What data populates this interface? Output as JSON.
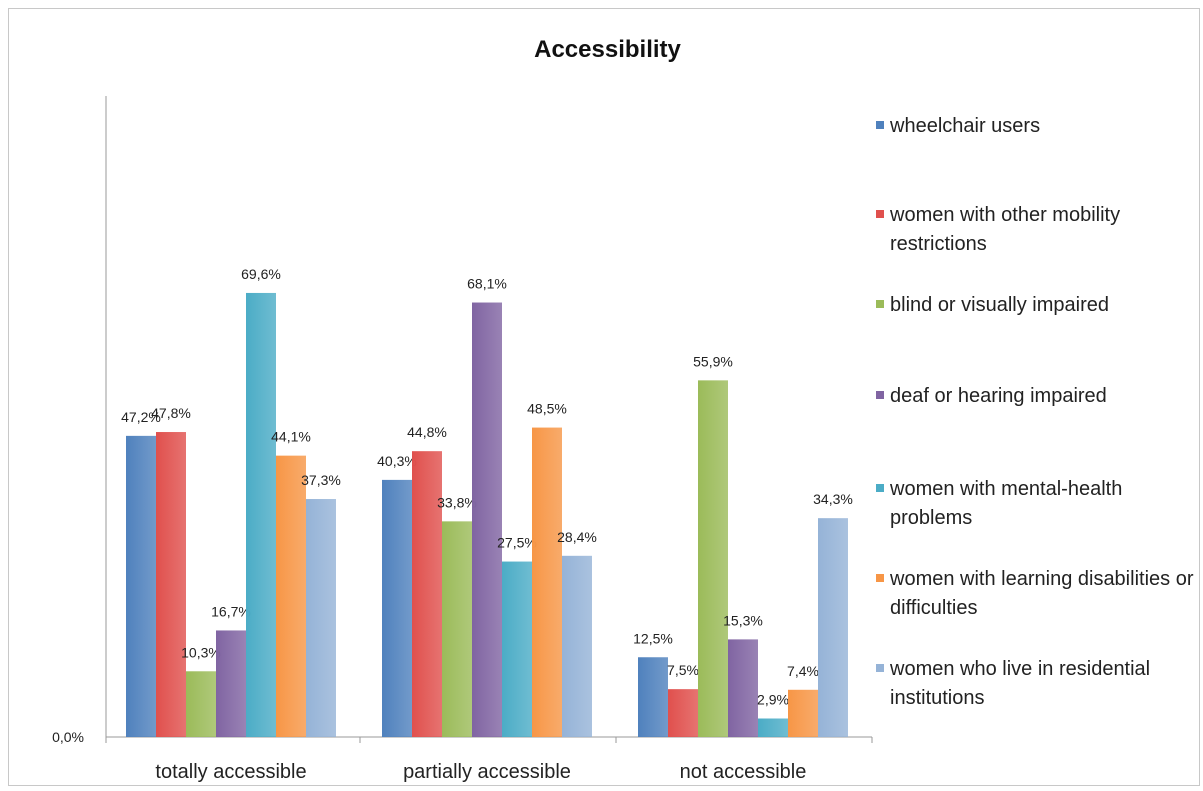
{
  "chart_data": {
    "type": "bar",
    "title": "Accessibility",
    "xlabel": "",
    "ylabel": "",
    "ylim": [
      0,
      70
    ],
    "y_tick_labels": [
      "0,0%"
    ],
    "grid": false,
    "legend_placement": "right",
    "categories": [
      "totally accessible",
      "partially accessible",
      "not accessible"
    ],
    "series": [
      {
        "name": "wheelchair users",
        "color": "#4f81bd",
        "values": [
          47.2,
          40.3,
          12.5
        ],
        "labels": [
          "47,2%",
          "40,3%",
          "12,5%"
        ]
      },
      {
        "name": "women with other mobility restrictions",
        "color": "#e0504d",
        "values": [
          47.8,
          44.8,
          7.5
        ],
        "labels": [
          "47,8%",
          "44,8%",
          "7,5%"
        ]
      },
      {
        "name": "blind or visually impaired",
        "color": "#9bbb59",
        "values": [
          10.3,
          33.8,
          55.9
        ],
        "labels": [
          "10,3%",
          "33,8%",
          "55,9%"
        ]
      },
      {
        "name": "deaf or hearing impaired",
        "color": "#8064a2",
        "values": [
          16.7,
          68.1,
          15.3
        ],
        "labels": [
          "16,7%",
          "68,1%",
          "15,3%"
        ]
      },
      {
        "name": "women with mental-health problems",
        "color": "#4bacc6",
        "values": [
          69.6,
          27.5,
          2.9
        ],
        "labels": [
          "69,6%",
          "27,5%",
          "2,9%"
        ]
      },
      {
        "name": "women with learning disabilities or difficulties",
        "color": "#f79646",
        "values": [
          44.1,
          48.5,
          7.4
        ],
        "labels": [
          "44,1%",
          "48,5%",
          "7,4%"
        ]
      },
      {
        "name": "women who live in residential institutions",
        "color": "#95b3d7",
        "values": [
          37.3,
          28.4,
          34.3
        ],
        "labels": [
          "37,3%",
          "28,4%",
          "34,3%"
        ]
      }
    ]
  }
}
